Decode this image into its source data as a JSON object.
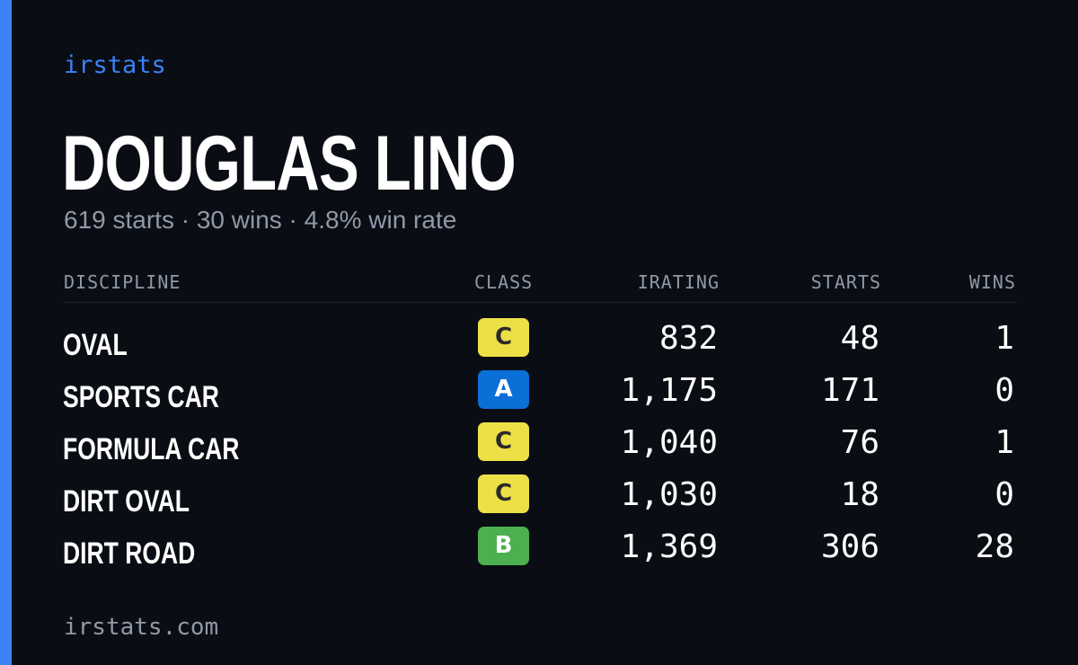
{
  "brand": "irstats",
  "player": {
    "name": "DOUGLAS LINO",
    "summary": "619 starts · 30 wins · 4.8% win rate"
  },
  "table": {
    "headers": {
      "discipline": "DISCIPLINE",
      "class": "CLASS",
      "irating": "IRATING",
      "starts": "STARTS",
      "wins": "WINS"
    },
    "rows": [
      {
        "discipline": "OVAL",
        "class": "C",
        "irating": "832",
        "starts": "48",
        "wins": "1"
      },
      {
        "discipline": "SPORTS CAR",
        "class": "A",
        "irating": "1,175",
        "starts": "171",
        "wins": "0"
      },
      {
        "discipline": "FORMULA CAR",
        "class": "C",
        "irating": "1,040",
        "starts": "76",
        "wins": "1"
      },
      {
        "discipline": "DIRT OVAL",
        "class": "C",
        "irating": "1,030",
        "starts": "18",
        "wins": "0"
      },
      {
        "discipline": "DIRT ROAD",
        "class": "B",
        "irating": "1,369",
        "starts": "306",
        "wins": "28"
      }
    ]
  },
  "class_colors": {
    "A": {
      "bg": "#0a6fd6",
      "fg": "#ffffff"
    },
    "B": {
      "bg": "#4caf50",
      "fg": "#ffffff"
    },
    "C": {
      "bg": "#ece046",
      "fg": "#2a2a2a"
    }
  },
  "colors": {
    "accent": "#3b82f6",
    "background": "#0a0d14",
    "muted_text": "#8f99a8"
  },
  "footer": "irstats.com"
}
